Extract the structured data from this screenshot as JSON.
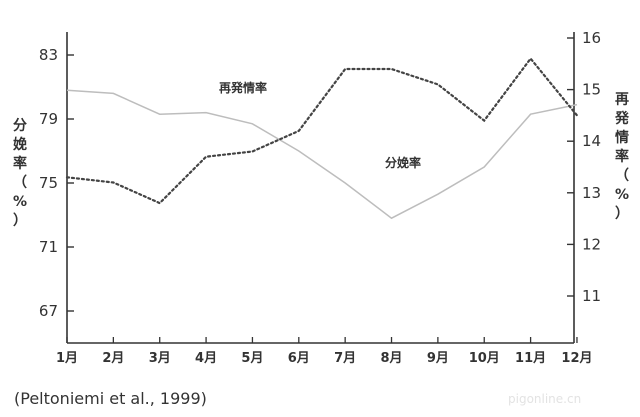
{
  "chart_data": {
    "type": "line",
    "categories": [
      "1月",
      "2月",
      "3月",
      "4月",
      "5月",
      "6月",
      "7月",
      "8月",
      "9月",
      "10月",
      "11月",
      "12月"
    ],
    "y_left": {
      "label": "分娩率（%）",
      "range": [
        65,
        85
      ],
      "ticks": [
        67,
        71,
        75,
        79,
        83
      ]
    },
    "y_right": {
      "label": "再発情率（%）",
      "range": [
        10,
        16
      ],
      "ticks": [
        11,
        12,
        13,
        14,
        15,
        16
      ]
    },
    "series": [
      {
        "name": "分娩率",
        "axis": "left",
        "style": "solid",
        "values": [
          80.8,
          80.6,
          79.3,
          79.4,
          78.7,
          77.0,
          75.0,
          72.8,
          74.3,
          76.0,
          79.3,
          79.9
        ]
      },
      {
        "name": "再発情率",
        "axis": "right",
        "style": "dotted",
        "values": [
          13.3,
          13.2,
          12.8,
          13.7,
          13.8,
          14.2,
          15.4,
          15.4,
          15.1,
          14.4,
          15.6,
          14.5
        ]
      }
    ],
    "grid": false,
    "legend": "inline labels"
  },
  "citation": "(Peltoniemi et al., 1999)",
  "watermark": "pigonline.cn",
  "colors": {
    "solid_line": "#bdbdbd",
    "dotted_line": "#444444",
    "axis": "#333333"
  }
}
